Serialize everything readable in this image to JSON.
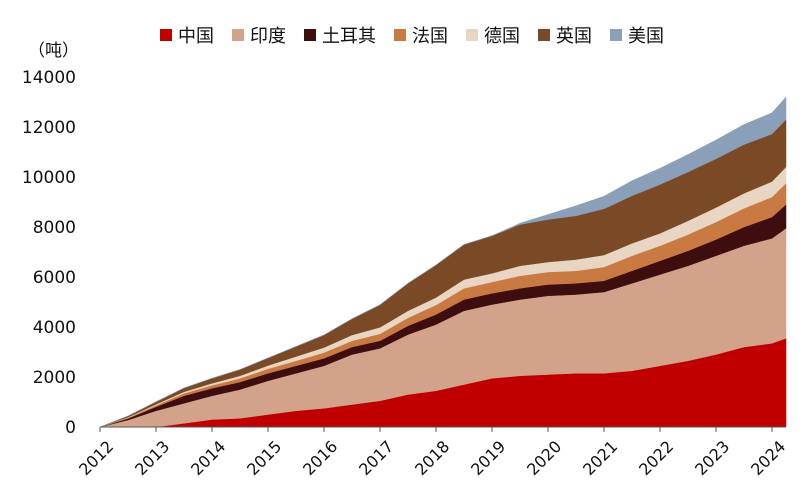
{
  "chart_data": {
    "type": "area",
    "stacked": true,
    "unit_label": "（吨）",
    "ylim": [
      0,
      14000
    ],
    "yticks": [
      0,
      2000,
      4000,
      6000,
      8000,
      10000,
      12000,
      14000
    ],
    "xticks": [
      "2012",
      "2013",
      "2014",
      "2015",
      "2016",
      "2017",
      "2018",
      "2019",
      "2020",
      "2021",
      "2022",
      "2023",
      "2024"
    ],
    "legend_position": "top",
    "x": [
      2012.0,
      2012.5,
      2013.0,
      2013.5,
      2014.0,
      2014.5,
      2015.0,
      2015.5,
      2016.0,
      2016.5,
      2017.0,
      2017.5,
      2018.0,
      2018.5,
      2019.0,
      2019.5,
      2020.0,
      2020.5,
      2021.0,
      2021.5,
      2022.0,
      2022.5,
      2023.0,
      2023.5,
      2024.0,
      2024.25
    ],
    "series": [
      {
        "name": "中国",
        "color": "#c00000",
        "values": [
          0,
          0,
          0,
          150,
          300,
          350,
          500,
          650,
          750,
          900,
          1050,
          1300,
          1450,
          1700,
          1950,
          2050,
          2100,
          2150,
          2150,
          2250,
          2450,
          2650,
          2900,
          3200,
          3350,
          3550
        ]
      },
      {
        "name": "印度",
        "color": "#d2a38a",
        "values": [
          0,
          280,
          650,
          800,
          950,
          1150,
          1350,
          1500,
          1700,
          2000,
          2100,
          2400,
          2650,
          2950,
          2950,
          3050,
          3150,
          3150,
          3250,
          3500,
          3650,
          3800,
          3950,
          4050,
          4200,
          4400
        ]
      },
      {
        "name": "土耳其",
        "color": "#3e0d0d",
        "values": [
          0,
          60,
          160,
          300,
          300,
          300,
          300,
          300,
          300,
          300,
          300,
          350,
          400,
          450,
          450,
          450,
          450,
          450,
          450,
          500,
          550,
          600,
          650,
          750,
          850,
          950
        ]
      },
      {
        "name": "法国",
        "color": "#c87a42",
        "values": [
          0,
          30,
          60,
          100,
          120,
          150,
          180,
          200,
          230,
          250,
          280,
          320,
          380,
          450,
          450,
          500,
          500,
          500,
          550,
          600,
          600,
          650,
          700,
          750,
          800,
          850
        ]
      },
      {
        "name": "德国",
        "color": "#e8d5c2",
        "values": [
          0,
          20,
          40,
          60,
          80,
          100,
          130,
          170,
          200,
          230,
          260,
          280,
          300,
          350,
          350,
          400,
          400,
          450,
          480,
          500,
          500,
          550,
          580,
          600,
          620,
          650
        ]
      },
      {
        "name": "英国",
        "color": "#7a4a26",
        "values": [
          0,
          50,
          100,
          150,
          200,
          250,
          300,
          400,
          500,
          650,
          900,
          1100,
          1300,
          1400,
          1500,
          1650,
          1700,
          1750,
          1850,
          1900,
          1950,
          1950,
          1950,
          1950,
          1900,
          1900
        ]
      },
      {
        "name": "美国",
        "color": "#8aa0b8",
        "values": [
          0,
          0,
          0,
          0,
          0,
          0,
          0,
          0,
          0,
          0,
          0,
          0,
          0,
          0,
          0,
          50,
          200,
          400,
          500,
          600,
          650,
          700,
          750,
          800,
          850,
          900
        ]
      }
    ]
  }
}
